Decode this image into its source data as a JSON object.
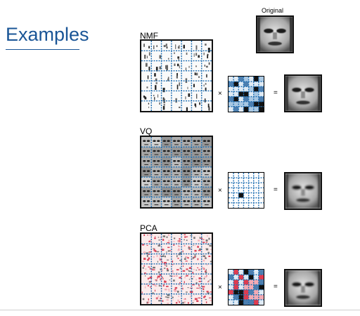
{
  "slide": {
    "title": "Examples"
  },
  "original": {
    "label": "Original"
  },
  "rows": [
    {
      "id": "nmf",
      "label": "NMF",
      "times": "×",
      "equals": "="
    },
    {
      "id": "vq",
      "label": "VQ",
      "times": "×",
      "equals": "="
    },
    {
      "id": "pca",
      "label": "PCA",
      "times": "×",
      "equals": "="
    }
  ],
  "colors": {
    "title": "#1a5596",
    "grid_lines": "#1f6fb3",
    "coef_positive_dark": "#1a1a1a",
    "coef_light": "#cfe3f3",
    "coef_negative": "#e03b4e"
  }
}
